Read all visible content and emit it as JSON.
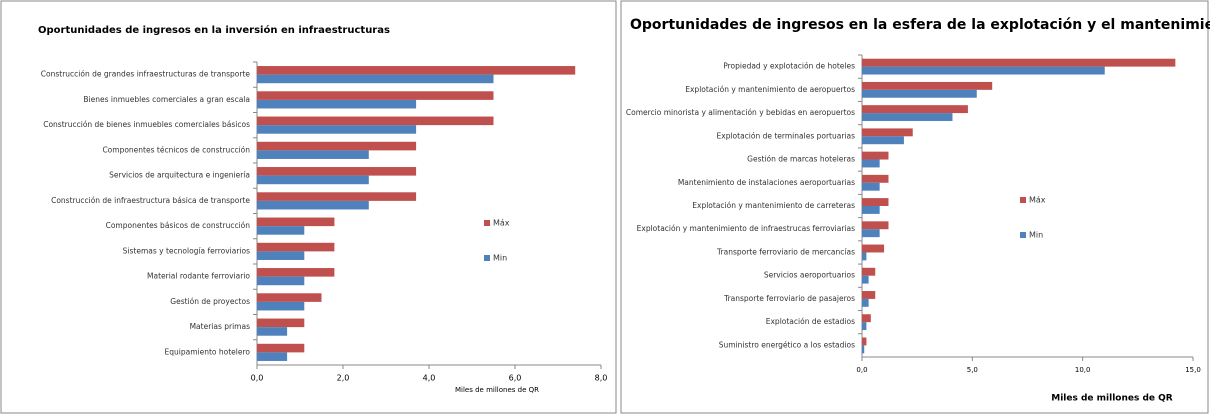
{
  "chart_data": [
    {
      "type": "bar",
      "orientation": "horizontal",
      "title": "Oportunidades de ingresos en la inversión en infraestructuras",
      "x_label": "Miles de millones de QR",
      "categories": [
        "Construcción de grandes infraestructuras de transporte",
        "Bienes inmuebles comerciales a gran escala",
        "Construcción de bienes inmuebles comerciales básicos",
        "Componentes técnicos de construcción",
        "Servicios de arquitectura e ingeniería",
        "Construcción de infraestructura básica de transporte",
        "Componentes básicos de construcción",
        "Sistemas y tecnología ferroviarios",
        "Material rodante ferroviario",
        "Gestión de proyectos",
        "Materias primas",
        "Equipamiento hotelero"
      ],
      "series": [
        {
          "name": "Máx",
          "color": "#c0504d",
          "values": [
            7.4,
            5.5,
            5.5,
            3.7,
            3.7,
            3.7,
            1.8,
            1.8,
            1.8,
            1.5,
            1.1,
            1.1
          ]
        },
        {
          "name": "Min",
          "color": "#4f81bd",
          "values": [
            5.5,
            3.7,
            3.7,
            2.6,
            2.6,
            2.6,
            1.1,
            1.1,
            1.1,
            1.1,
            0.7,
            0.7
          ]
        }
      ],
      "xlim": [
        0,
        8
      ],
      "xticks": [
        {
          "value": 0,
          "label": "0,0"
        },
        {
          "value": 2,
          "label": "2,0"
        },
        {
          "value": 4,
          "label": "4,0"
        },
        {
          "value": 6,
          "label": "6,0"
        },
        {
          "value": 8,
          "label": "8,0"
        }
      ],
      "legend": "right"
    },
    {
      "type": "bar",
      "orientation": "horizontal",
      "title": "Oportunidades de ingresos en la esfera de la explotación y el mantenimiento",
      "x_label": "Miles de millones de QR",
      "categories": [
        "Propiedad y explotación de hoteles",
        "Explotación y mantenimiento de aeropuertos",
        "Comercio minorista y alimentación y bebidas en aeropuertos",
        "Explotación de terminales portuarias",
        "Gestión de marcas hoteleras",
        "Mantenimiento de instalaciones aeroportuarias",
        "Explotación y mantenimiento de carreteras",
        "Explotación y mantenimiento de infraestrucas ferroviarias",
        "Transporte ferroviario de mercancías",
        "Servicios aeroportuarios",
        "Transporte ferroviario de pasajeros",
        "Explotación de estadios",
        "Suministro energético a los estadios"
      ],
      "series": [
        {
          "name": "Máx",
          "color": "#c0504d",
          "values": [
            14.2,
            5.9,
            4.8,
            2.3,
            1.2,
            1.2,
            1.2,
            1.2,
            1.0,
            0.6,
            0.6,
            0.4,
            0.2
          ]
        },
        {
          "name": "Min",
          "color": "#4f81bd",
          "values": [
            11.0,
            5.2,
            4.1,
            1.9,
            0.8,
            0.8,
            0.8,
            0.8,
            0.2,
            0.3,
            0.3,
            0.2,
            0.1
          ]
        }
      ],
      "xlim": [
        0,
        15
      ],
      "xticks": [
        {
          "value": 0,
          "label": "0,0"
        },
        {
          "value": 5,
          "label": "5,0"
        },
        {
          "value": 10,
          "label": "10,0"
        },
        {
          "value": 15,
          "label": "15,0"
        }
      ],
      "legend": "right"
    }
  ]
}
